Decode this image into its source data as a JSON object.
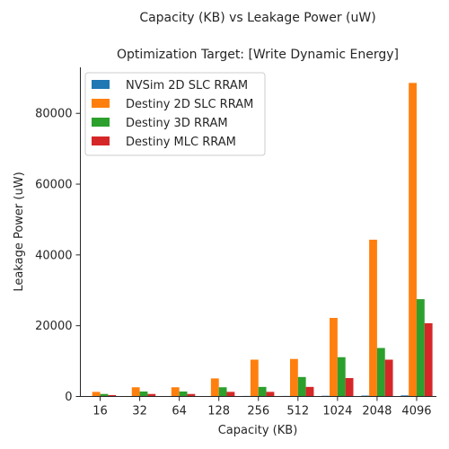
{
  "chart_data": {
    "type": "bar",
    "suptitle": "Capacity (KB) vs Leakage Power (uW)",
    "title": "Optimization Target: [Write Dynamic Energy]",
    "xlabel": "Capacity (KB)",
    "ylabel": "Leakage Power (uW)",
    "ylim": [
      0,
      93000
    ],
    "yticks": [
      0,
      20000,
      40000,
      60000,
      80000
    ],
    "categories": [
      "16",
      "32",
      "64",
      "128",
      "256",
      "512",
      "1024",
      "2048",
      "4096"
    ],
    "legend_position": "top-left",
    "grid": false,
    "series": [
      {
        "name": "NVSim 2D SLC RRAM",
        "color": "#1f77b4",
        "values": [
          100,
          100,
          100,
          100,
          150,
          150,
          200,
          250,
          300
        ]
      },
      {
        "name": "Destiny 2D SLC RRAM",
        "color": "#ff7f0e",
        "values": [
          1300,
          2600,
          2600,
          5100,
          10400,
          10600,
          22200,
          44300,
          88600
        ]
      },
      {
        "name": "Destiny 3D RRAM",
        "color": "#2ca02c",
        "values": [
          700,
          1400,
          1400,
          2600,
          2700,
          5500,
          11100,
          13700,
          27500
        ]
      },
      {
        "name": "Destiny MLC RRAM",
        "color": "#d62728",
        "values": [
          400,
          700,
          700,
          1300,
          1300,
          2700,
          5200,
          10400,
          20700
        ]
      }
    ]
  }
}
